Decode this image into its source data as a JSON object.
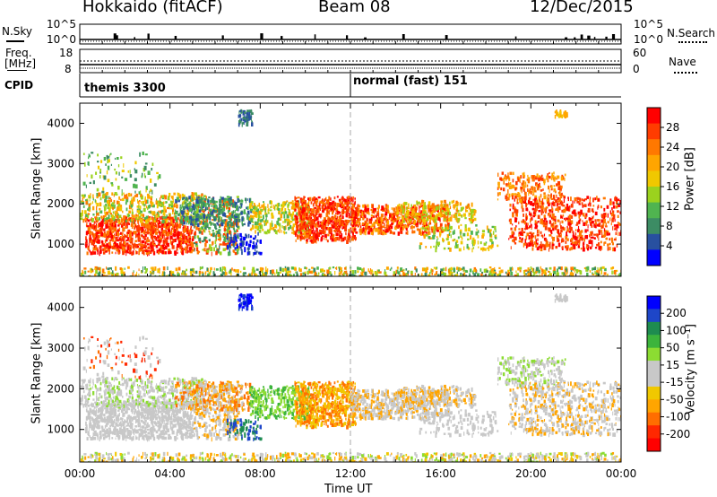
{
  "header": {
    "title": "Hokkaido (fitACF)",
    "beam": "Beam 08",
    "date": "12/Dec/2015"
  },
  "chart_data": [
    {
      "type": "line",
      "name": "noise-panel",
      "left_label": "N.Sky",
      "left_ticks": [
        "10^5",
        "10^0"
      ],
      "right_ticks": [
        "10^5",
        "10^0"
      ],
      "right_label": "N.Search"
    },
    {
      "type": "line",
      "name": "frequency-panel",
      "left_label_line1": "Freq.",
      "left_label_line2": "[MHz]",
      "left_ticks": [
        "18",
        "8"
      ],
      "right_ticks": [
        "60",
        "0"
      ],
      "right_label": "Nave"
    },
    {
      "type": "table",
      "name": "cpid-panel",
      "label": "CPID",
      "segments": [
        {
          "start": "00:00",
          "label": "themis 3300"
        },
        {
          "start": "12:00",
          "label": "normal (fast) 151"
        }
      ]
    },
    {
      "type": "heatmap",
      "name": "power-panel",
      "ylabel": "Slant Range [km]",
      "yticks": [
        "4000",
        "3000",
        "2000",
        "1000"
      ],
      "ylim": [
        200,
        4500
      ],
      "xlim": [
        0,
        24
      ],
      "colorbar": {
        "label": "Power [dB]",
        "ticks": [
          "28",
          "24",
          "20",
          "16",
          "12",
          "8",
          "4"
        ],
        "colors": [
          "#ff0000",
          "#ff3c00",
          "#ff7800",
          "#ffa500",
          "#f0c800",
          "#9bd21e",
          "#50b450",
          "#3c8c64",
          "#2850a0",
          "#0000ff"
        ]
      }
    },
    {
      "type": "heatmap",
      "name": "velocity-panel",
      "ylabel": "Slant Range [km]",
      "yticks": [
        "4000",
        "3000",
        "2000",
        "1000"
      ],
      "ylim": [
        200,
        4500
      ],
      "xlim": [
        0,
        24
      ],
      "xticks": [
        "00:00",
        "04:00",
        "08:00",
        "12:00",
        "16:00",
        "20:00",
        "00:00"
      ],
      "xlabel": "Time UT",
      "colorbar": {
        "label": "Velocity [m s⁻¹]",
        "ticks": [
          "200",
          "100",
          "50",
          "15",
          "-15",
          "-50",
          "-100",
          "-200"
        ],
        "colors": [
          "#0000ff",
          "#1e46c8",
          "#1e8c50",
          "#3cb43c",
          "#8cdc32",
          "#c8c8c8",
          "#c8c8c8",
          "#f0c800",
          "#ffa500",
          "#ff6e00",
          "#ff2800",
          "#ff0000"
        ]
      }
    }
  ]
}
